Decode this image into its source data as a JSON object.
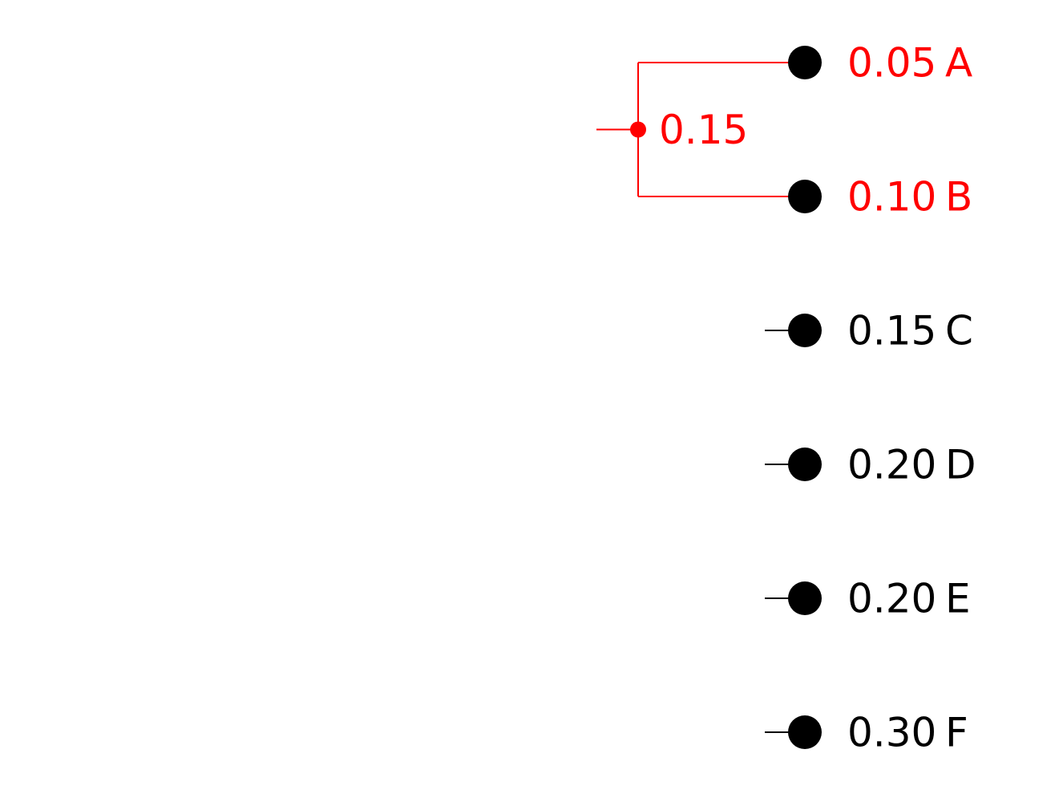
{
  "colors": {
    "highlight": "#ff0000",
    "default": "#000000",
    "background": "#ffffff"
  },
  "leaves": [
    {
      "id": "A",
      "prob": "0.05",
      "highlighted": true
    },
    {
      "id": "B",
      "prob": "0.10",
      "highlighted": true
    },
    {
      "id": "C",
      "prob": "0.15",
      "highlighted": false
    },
    {
      "id": "D",
      "prob": "0.20",
      "highlighted": false
    },
    {
      "id": "E",
      "prob": "0.20",
      "highlighted": false
    },
    {
      "id": "F",
      "prob": "0.30",
      "highlighted": false
    }
  ],
  "merged_node": {
    "prob": "0.15",
    "children": [
      "A",
      "B"
    ],
    "highlighted": true
  }
}
